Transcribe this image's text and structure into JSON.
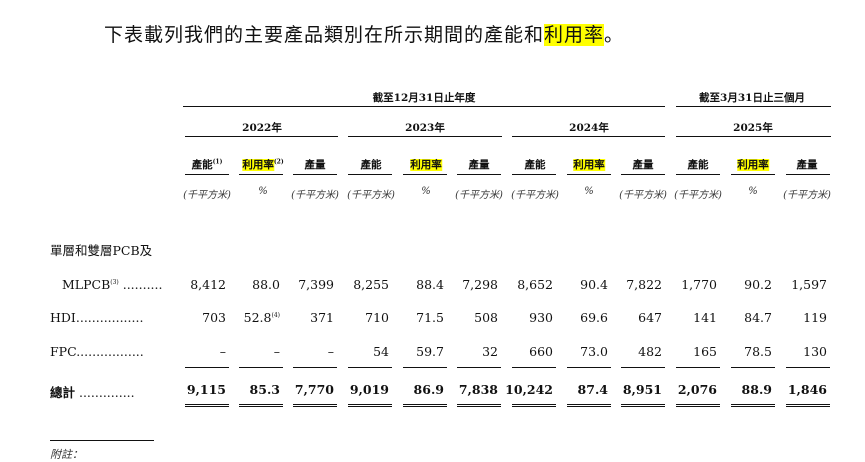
{
  "intro": {
    "text_before": "下表載列我們的主要產品類別在所示期間的產能和",
    "highlight": "利用率",
    "text_after": "。"
  },
  "table": {
    "group_headers": {
      "annual": "截至12月31日止年度",
      "quarter": "截至3月31日止三個月"
    },
    "years": [
      "2022年",
      "2023年",
      "2024年",
      "2025年"
    ],
    "col_headers": {
      "capacity": "產能",
      "utilization": "利用率",
      "output": "產量",
      "note_capacity": "(1)",
      "note_utilization": "(2)"
    },
    "units": {
      "area": "(千平方米)",
      "percent": "%"
    },
    "section_label": "單層和雙層PCB及",
    "rows": [
      {
        "label": "MLPCB",
        "note": "(3)",
        "leader": " ..........",
        "values": [
          "8,412",
          "88.0",
          "7,399",
          "8,255",
          "88.4",
          "7,298",
          "8,652",
          "90.4",
          "7,822",
          "1,770",
          "90.2",
          "1,597"
        ]
      },
      {
        "label": "HDI",
        "leader": ".................",
        "values": [
          "703",
          "52.8",
          "371",
          "710",
          "71.5",
          "508",
          "930",
          "69.6",
          "647",
          "141",
          "84.7",
          "119"
        ],
        "value_note": "(4)"
      },
      {
        "label": "FPC",
        "leader": ".................",
        "values": [
          "–",
          "–",
          "–",
          "54",
          "59.7",
          "32",
          "660",
          "73.0",
          "482",
          "165",
          "78.5",
          "130"
        ]
      },
      {
        "label": "總計",
        "leader": " ..............",
        "values": [
          "9,115",
          "85.3",
          "7,770",
          "9,019",
          "86.9",
          "7,838",
          "10,242",
          "87.4",
          "8,951",
          "2,076",
          "88.9",
          "1,846"
        ]
      }
    ],
    "footnote_label": "附註："
  }
}
